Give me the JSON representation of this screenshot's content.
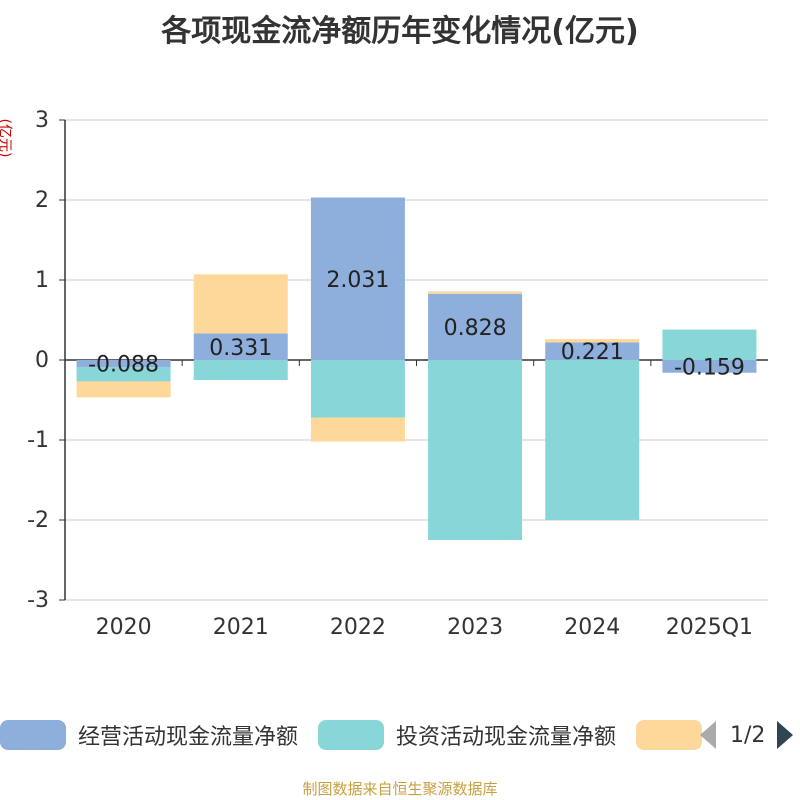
{
  "title": "各项现金流净额历年变化情况(亿元)",
  "unit_label": "(亿元)",
  "source": "制图数据来自恒生聚源数据库",
  "legend": {
    "items": [
      {
        "label": "经营活动现金流量净额",
        "color": "#8eaedc"
      },
      {
        "label": "投资活动现金流量净额",
        "color": "#88d6d8"
      },
      {
        "label": "",
        "color": "#fdd89a"
      }
    ],
    "page": "1/2"
  },
  "chart_data": {
    "type": "bar",
    "stacked": true,
    "categories": [
      "2020",
      "2021",
      "2022",
      "2023",
      "2024",
      "2025Q1"
    ],
    "ylim": [
      -3,
      3
    ],
    "yticks": [
      -3,
      -2,
      -1,
      0,
      1,
      2,
      3
    ],
    "grid": true,
    "series": [
      {
        "name": "经营活动现金流量净额",
        "color": "#8eaedc",
        "values": [
          -0.088,
          0.331,
          2.031,
          0.828,
          0.221,
          -0.159
        ],
        "labels": [
          "-0.088",
          "0.331",
          "2.031",
          "0.828",
          "0.221",
          "-0.159"
        ]
      },
      {
        "name": "投资活动现金流量净额",
        "color": "#88d6d8",
        "values": [
          -0.18,
          -0.25,
          -0.72,
          -2.25,
          -2.0,
          0.38
        ]
      },
      {
        "color": "#fdd89a",
        "values": [
          -0.2,
          0.74,
          -0.3,
          0.03,
          0.04,
          0.0
        ]
      }
    ]
  }
}
